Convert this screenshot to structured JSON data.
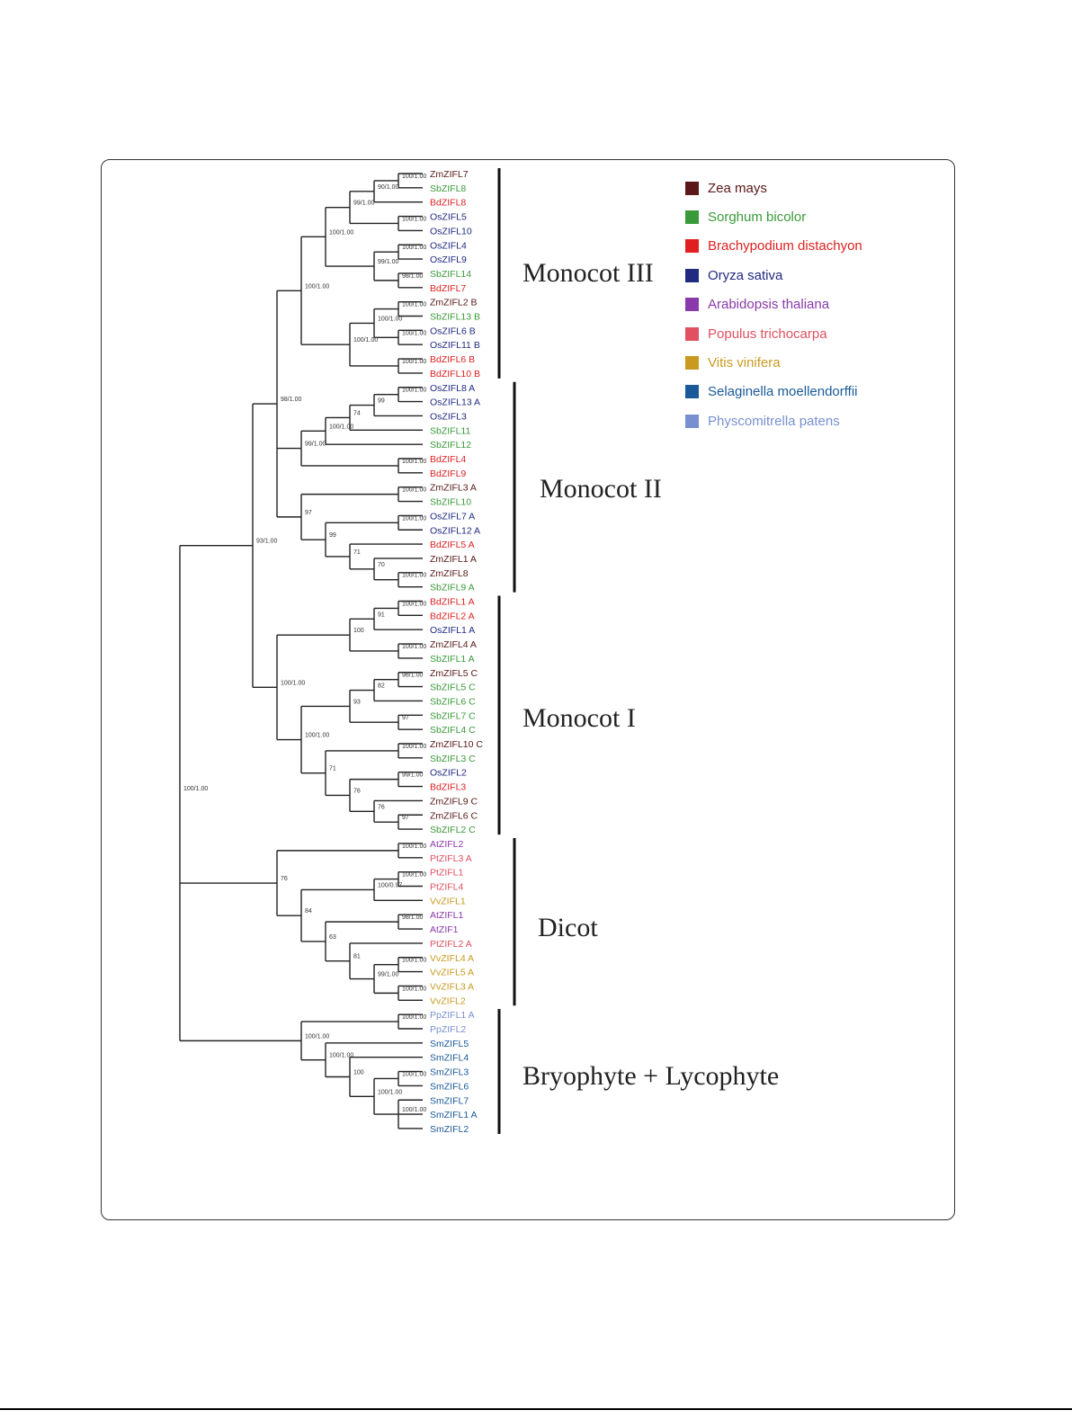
{
  "legend": [
    {
      "name": "Zea mays",
      "color": "#5a1818"
    },
    {
      "name": "Sorghum bicolor",
      "color": "#3a9a3a"
    },
    {
      "name": "Brachypodium distachyon",
      "color": "#e02020"
    },
    {
      "name": "Oryza sativa",
      "color": "#202a80"
    },
    {
      "name": "Arabidopsis thaliana",
      "color": "#8a3aaa"
    },
    {
      "name": "Populus trichocarpa",
      "color": "#e05060"
    },
    {
      "name": "Vitis vinifera",
      "color": "#c89a20"
    },
    {
      "name": "Selaginella moellendorffii",
      "color": "#1a5a98"
    },
    {
      "name": "Physcomitrella patens",
      "color": "#7890d0"
    }
  ],
  "clades": [
    {
      "name": "Monocot III"
    },
    {
      "name": "Monocot II"
    },
    {
      "name": "Monocot I"
    },
    {
      "name": "Dicot"
    },
    {
      "name": "Bryophyte + Lycophyte"
    }
  ],
  "leaves": [
    {
      "label": "ZmZIFL7",
      "sp": 0
    },
    {
      "label": "SbZIFL8",
      "sp": 1
    },
    {
      "label": "BdZIFL8",
      "sp": 2
    },
    {
      "label": "OsZIFL5",
      "sp": 3
    },
    {
      "label": "OsZIFL10",
      "sp": 3
    },
    {
      "label": "OsZIFL4",
      "sp": 3
    },
    {
      "label": "OsZIFL9",
      "sp": 3
    },
    {
      "label": "SbZIFL14",
      "sp": 1
    },
    {
      "label": "BdZIFL7",
      "sp": 2
    },
    {
      "label": "ZmZIFL2 B",
      "sp": 0
    },
    {
      "label": "SbZIFL13 B",
      "sp": 1
    },
    {
      "label": "OsZIFL6 B",
      "sp": 3
    },
    {
      "label": "OsZIFL11 B",
      "sp": 3
    },
    {
      "label": "BdZIFL6 B",
      "sp": 2
    },
    {
      "label": "BdZIFL10 B",
      "sp": 2
    },
    {
      "label": "OsZIFL8 A",
      "sp": 3
    },
    {
      "label": "OsZIFL13 A",
      "sp": 3
    },
    {
      "label": "OsZIFL3",
      "sp": 3
    },
    {
      "label": "SbZIFL11",
      "sp": 1
    },
    {
      "label": "SbZIFL12",
      "sp": 1
    },
    {
      "label": "BdZIFL4",
      "sp": 2
    },
    {
      "label": "BdZIFL9",
      "sp": 2
    },
    {
      "label": "ZmZIFL3 A",
      "sp": 0
    },
    {
      "label": "SbZIFL10",
      "sp": 1
    },
    {
      "label": "OsZIFL7 A",
      "sp": 3
    },
    {
      "label": "OsZIFL12 A",
      "sp": 3
    },
    {
      "label": "BdZIFL5 A",
      "sp": 2
    },
    {
      "label": "ZmZIFL1 A",
      "sp": 0
    },
    {
      "label": "ZmZIFL8",
      "sp": 0
    },
    {
      "label": "SbZIFL9 A",
      "sp": 1
    },
    {
      "label": "BdZIFL1 A",
      "sp": 2
    },
    {
      "label": "BdZIFL2 A",
      "sp": 2
    },
    {
      "label": "OsZIFL1 A",
      "sp": 3
    },
    {
      "label": "ZmZIFL4 A",
      "sp": 0
    },
    {
      "label": "SbZIFL1 A",
      "sp": 1
    },
    {
      "label": "ZmZIFL5 C",
      "sp": 0
    },
    {
      "label": "SbZIFL5 C",
      "sp": 1
    },
    {
      "label": "SbZIFL6 C",
      "sp": 1
    },
    {
      "label": "SbZIFL7 C",
      "sp": 1
    },
    {
      "label": "SbZIFL4 C",
      "sp": 1
    },
    {
      "label": "ZmZIFL10 C",
      "sp": 0
    },
    {
      "label": "SbZIFL3 C",
      "sp": 1
    },
    {
      "label": "OsZIFL2",
      "sp": 3
    },
    {
      "label": "BdZIFL3",
      "sp": 2
    },
    {
      "label": "ZmZIFL9 C",
      "sp": 0
    },
    {
      "label": "ZmZIFL6 C",
      "sp": 0
    },
    {
      "label": "SbZIFL2 C",
      "sp": 1
    },
    {
      "label": "AtZIFL2",
      "sp": 4
    },
    {
      "label": "PtZIFL3 A",
      "sp": 5
    },
    {
      "label": "PtZIFL1",
      "sp": 5
    },
    {
      "label": "PtZIFL4",
      "sp": 5
    },
    {
      "label": "VvZIFL1",
      "sp": 6
    },
    {
      "label": "AtZIFL1",
      "sp": 4
    },
    {
      "label": "AtZIF1",
      "sp": 4
    },
    {
      "label": "PtZIFL2 A",
      "sp": 5
    },
    {
      "label": "VvZIFL4 A",
      "sp": 6
    },
    {
      "label": "VvZIFL5 A",
      "sp": 6
    },
    {
      "label": "VvZIFL3 A",
      "sp": 6
    },
    {
      "label": "VvZIFL2",
      "sp": 6
    },
    {
      "label": "PpZIFL1 A",
      "sp": 8
    },
    {
      "label": "PpZIFL2",
      "sp": 8
    },
    {
      "label": "SmZIFL5",
      "sp": 7
    },
    {
      "label": "SmZIFL4",
      "sp": 7
    },
    {
      "label": "SmZIFL3",
      "sp": 7
    },
    {
      "label": "SmZIFL6",
      "sp": 7
    },
    {
      "label": "SmZIFL7",
      "sp": 7
    },
    {
      "label": "SmZIFL1 A",
      "sp": 7
    },
    {
      "label": "SmZIFL2",
      "sp": 7
    }
  ],
  "tree": [
    "100/1.00",
    [
      [
        "93/1.00",
        [
          [
            "98/1.00",
            [
              [
                "100/1.00",
                [
                  [
                    "100/1.00",
                    [
                      [
                        "99/1.00",
                        [
                          [
                            "90/1.00",
                            [
                              [
                                "100/1.00",
                                [
                                  0,
                                  1
                                ]
                              ],
                              2
                            ]
                          ],
                          [
                            "100/1.00",
                            [
                              3,
                              4
                            ]
                          ]
                        ]
                      ],
                      [
                        "99/1.00",
                        [
                          [
                            "100/1.00",
                            [
                              5,
                              6
                            ]
                          ],
                          [
                            "98/1.00",
                            [
                              7,
                              8
                            ]
                          ]
                        ]
                      ]
                    ]
                  ],
                  [
                    "100/1.00",
                    [
                      [
                        "100/1.00",
                        [
                          [
                            "100/1.00",
                            [
                              9,
                              10
                            ]
                          ],
                          [
                            "100/1.00",
                            [
                              11,
                              12
                            ]
                          ]
                        ]
                      ],
                      [
                        "100/1.00",
                        [
                          13,
                          14
                        ]
                      ]
                    ]
                  ]
                ]
              ],
              [
                "99/1.00",
                [
                  [
                    "100/1.00",
                    [
                      [
                        "74",
                        [
                          [
                            "99",
                            [
                              [
                                "100/1.00",
                                [
                                  15,
                                  16
                                ]
                              ],
                              17
                            ]
                          ],
                          18
                        ]
                      ],
                      19
                    ]
                  ],
                  [
                    "100/1.00",
                    [
                      20,
                      21
                    ]
                  ]
                ]
              ],
              [
                "97",
                [
                  [
                    "100/1.00",
                    [
                      22,
                      23
                    ]
                  ],
                  [
                    "99",
                    [
                      [
                        "100/1.00",
                        [
                          24,
                          25
                        ]
                      ],
                      [
                        "71",
                        [
                          26,
                          [
                            "70",
                            [
                              27,
                              [
                                "100/1.00",
                                [
                                  28,
                                  29
                                ]
                              ]
                            ]
                          ]
                        ]
                      ]
                    ]
                  ]
                ]
              ]
            ]
          ],
          [
            "100/1.00",
            [
              [
                "100",
                [
                  [
                    "91",
                    [
                      [
                        "100/1.00",
                        [
                          30,
                          31
                        ]
                      ],
                      32
                    ]
                  ],
                  [
                    "100/1.00",
                    [
                      33,
                      34
                    ]
                  ]
                ]
              ],
              [
                "100/1.00",
                [
                  [
                    "93",
                    [
                      [
                        "82",
                        [
                          [
                            "98/1.00",
                            [
                              35,
                              36
                            ]
                          ],
                          37
                        ]
                      ],
                      [
                        "97",
                        [
                          38,
                          39
                        ]
                      ]
                    ]
                  ],
                  [
                    "71",
                    [
                      [
                        "100/1.00",
                        [
                          40,
                          41
                        ]
                      ],
                      [
                        "76",
                        [
                          [
                            "99/1.00",
                            [
                              42,
                              43
                            ]
                          ],
                          [
                            "76",
                            [
                              44,
                              [
                                "97",
                                [
                                  45,
                                  46
                                ]
                              ]
                            ]
                          ]
                        ]
                      ]
                    ]
                  ]
                ]
              ]
            ]
          ]
        ]
      ],
      [
        "76",
        [
          [
            "100/1.00",
            [
              47,
              48
            ]
          ],
          [
            "84",
            [
              [
                "100/0.97",
                [
                  [
                    "100/1.00",
                    [
                      49,
                      50
                    ]
                  ],
                  51
                ]
              ],
              [
                "63",
                [
                  [
                    "98/1.00",
                    [
                      52,
                      53
                    ]
                  ],
                  [
                    "81",
                    [
                      54,
                      [
                        "99/1.00",
                        [
                          [
                            "100/1.00",
                            [
                              55,
                              56
                            ]
                          ],
                          [
                            "100/1.00",
                            [
                              57,
                              58
                            ]
                          ]
                        ]
                      ]
                    ]
                  ]
                ]
              ]
            ]
          ]
        ]
      ],
      [
        "100/1.00",
        [
          [
            "100/1.00",
            [
              59,
              60
            ]
          ],
          [
            "100/1.00",
            [
              61,
              [
                "100",
                [
                  62,
                  [
                    "100/1.00",
                    [
                      [
                        "100/1.00",
                        [
                          63,
                          64
                        ]
                      ],
                      [
                        "100/1.00",
                        [
                          65,
                          66,
                          67
                        ]
                      ]
                    ]
                  ]
                ]
              ]
            ]
          ]
        ]
      ]
    ]
  ]
}
